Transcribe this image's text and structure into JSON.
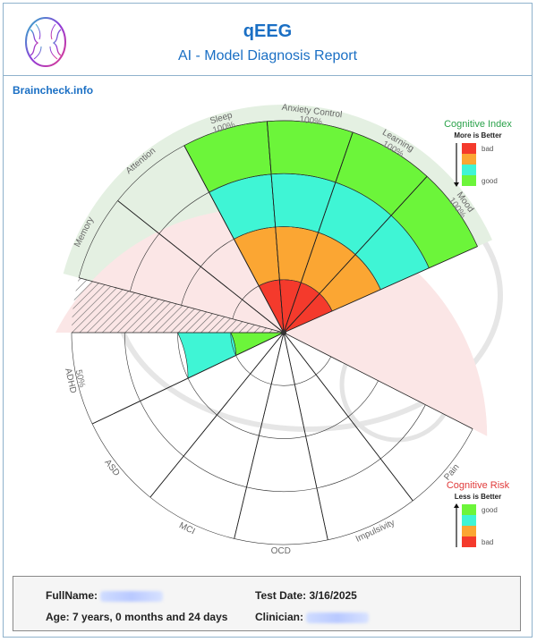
{
  "header": {
    "title": "qEEG",
    "subtitle": "AI - Model Diagnosis Report"
  },
  "site": "Braincheck.info",
  "legend_index": {
    "title": "Cognitive Index",
    "subtitle": "More is Better",
    "items": [
      {
        "label": "bad",
        "color": "#f43a2c"
      },
      {
        "label": "",
        "color": "#fba633"
      },
      {
        "label": "",
        "color": "#3ff5d5"
      },
      {
        "label": "good",
        "color": "#6cf53a"
      }
    ]
  },
  "legend_risk": {
    "title": "Cognitive Risk",
    "subtitle": "Less is Better",
    "items": [
      {
        "label": "good",
        "color": "#6cf53a"
      },
      {
        "label": "",
        "color": "#3ff5d5"
      },
      {
        "label": "",
        "color": "#fba633"
      },
      {
        "label": "bad",
        "color": "#f43a2c"
      }
    ]
  },
  "chart_data": {
    "type": "polar-bar",
    "band_colors": [
      "#f43a2c",
      "#fba633",
      "#3ff5d5",
      "#6cf53a"
    ],
    "index_group": {
      "name": "Cognitive Index",
      "categories": [
        {
          "label": "Memory",
          "value": null
        },
        {
          "label": "Attention",
          "value": null
        },
        {
          "label": "Sleep",
          "value": "100%"
        },
        {
          "label": "Anxiety Control",
          "value": "100%"
        },
        {
          "label": "Learning",
          "value": "100%"
        },
        {
          "label": "Mood",
          "value": "100%"
        }
      ],
      "values": [
        0,
        0,
        100,
        100,
        100,
        100
      ]
    },
    "risk_group": {
      "name": "Cognitive Risk",
      "categories": [
        {
          "label": "ADHD",
          "value": "50%"
        },
        {
          "label": "ASD",
          "value": null
        },
        {
          "label": "MCI",
          "value": null
        },
        {
          "label": "OCD",
          "value": null
        },
        {
          "label": "Impulsivity",
          "value": null
        },
        {
          "label": "Pain",
          "value": null
        }
      ],
      "values": [
        50,
        0,
        0,
        0,
        0,
        0
      ]
    }
  },
  "info": {
    "fullname_label": "FullName:",
    "age_label": "Age:",
    "age_value": "7 years, 0 months and 24 days",
    "test_date_label": "Test Date:",
    "test_date_value": "3/16/2025",
    "clinician_label": "Clinician:"
  }
}
